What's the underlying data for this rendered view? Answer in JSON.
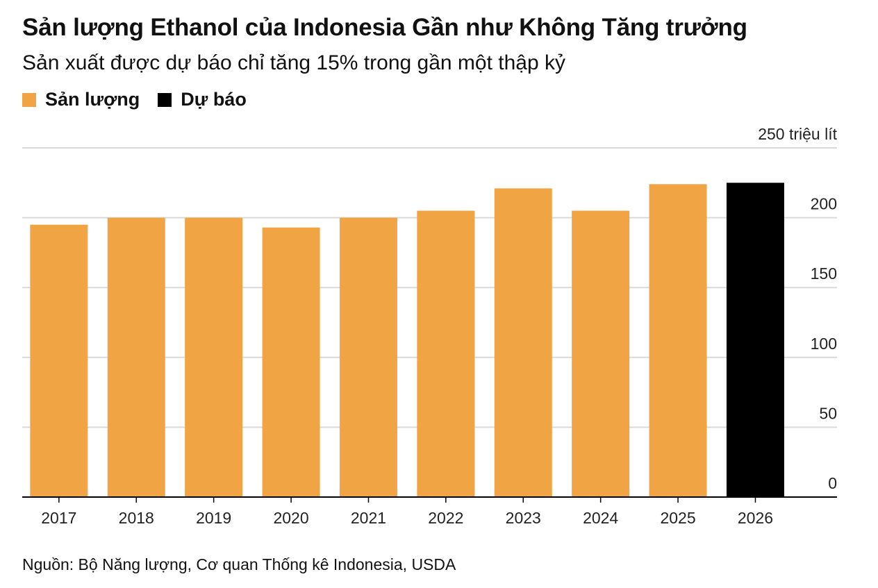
{
  "title": "Sản lượng Ethanol của Indonesia Gần như Không Tăng trưởng",
  "subtitle": "Sản xuất được dự báo chỉ tăng 15% trong gần một thập kỷ",
  "legend": {
    "production_label": "Sản lượng",
    "forecast_label": "Dự báo"
  },
  "colors": {
    "production": "#F0A443",
    "forecast": "#000000",
    "grid": "#d9d9d9",
    "axis": "#000000"
  },
  "source": "Nguồn: Bộ Năng lượng, Cơ quan Thống kê Indonesia, USDA",
  "chart_data": {
    "type": "bar",
    "categories": [
      "2017",
      "2018",
      "2019",
      "2020",
      "2021",
      "2022",
      "2023",
      "2024",
      "2025",
      "2026"
    ],
    "series": [
      {
        "name": "Sản lượng",
        "values": [
          195,
          200,
          200,
          193,
          200,
          205,
          221,
          205,
          224,
          null
        ]
      },
      {
        "name": "Dự báo",
        "values": [
          null,
          null,
          null,
          null,
          null,
          null,
          null,
          null,
          null,
          225
        ]
      }
    ],
    "y_ticks": [
      "0",
      "50",
      "100",
      "150",
      "200",
      "250 triệu lít"
    ],
    "y_tick_values": [
      0,
      50,
      100,
      150,
      200,
      250
    ],
    "ylim": [
      0,
      250
    ],
    "y_axis_side": "right",
    "grid": true,
    "legend_position": "top-left"
  }
}
